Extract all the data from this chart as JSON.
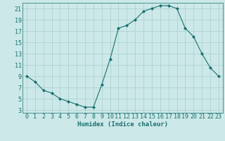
{
  "x": [
    0,
    1,
    2,
    3,
    4,
    5,
    6,
    7,
    8,
    9,
    10,
    11,
    12,
    13,
    14,
    15,
    16,
    17,
    18,
    19,
    20,
    21,
    22,
    23
  ],
  "y": [
    9,
    8,
    6.5,
    6,
    5,
    4.5,
    4,
    3.5,
    3.5,
    7.5,
    12,
    17.5,
    18,
    19,
    20.5,
    21,
    21.5,
    21.5,
    21,
    17.5,
    16,
    13,
    10.5,
    9
  ],
  "line_color": "#1a7070",
  "marker": "D",
  "marker_size": 2,
  "bg_color": "#cce8e8",
  "grid_color": "#aacfcf",
  "xlabel": "Humidex (Indice chaleur)",
  "xlim": [
    -0.5,
    23.5
  ],
  "ylim": [
    2.5,
    22
  ],
  "yticks": [
    3,
    5,
    7,
    9,
    11,
    13,
    15,
    17,
    19,
    21
  ],
  "xticks": [
    0,
    1,
    2,
    3,
    4,
    5,
    6,
    7,
    8,
    9,
    10,
    11,
    12,
    13,
    14,
    15,
    16,
    17,
    18,
    19,
    20,
    21,
    22,
    23
  ],
  "label_fontsize": 6.5,
  "tick_fontsize": 6
}
